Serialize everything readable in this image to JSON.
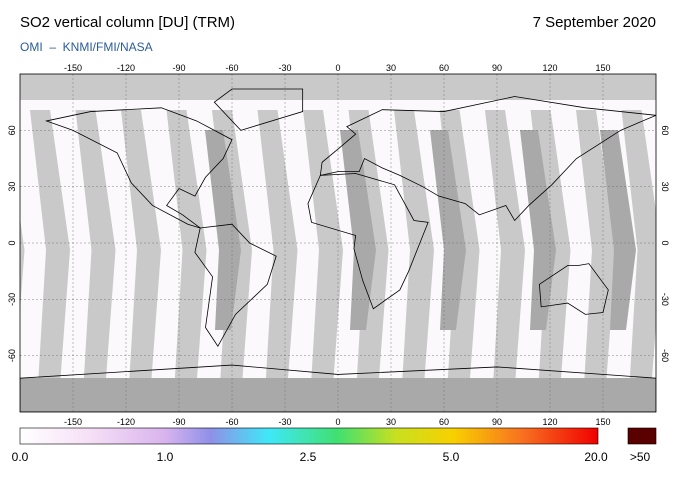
{
  "header": {
    "title": "SO2 vertical column [DU] (TRM)",
    "date": "7 September 2020",
    "subtitle": "OMI  –  KNMI/FMI/NASA"
  },
  "map": {
    "lon_ticks": [
      -150,
      -120,
      -90,
      -60,
      -30,
      0,
      30,
      60,
      90,
      120,
      150
    ],
    "lat_ticks": [
      60,
      30,
      0,
      -30,
      -60
    ]
  },
  "colorbar": {
    "labels": [
      "0.0",
      "1.0",
      "2.5",
      "5.0",
      "20.0"
    ],
    "overflow_label": ">50"
  }
}
